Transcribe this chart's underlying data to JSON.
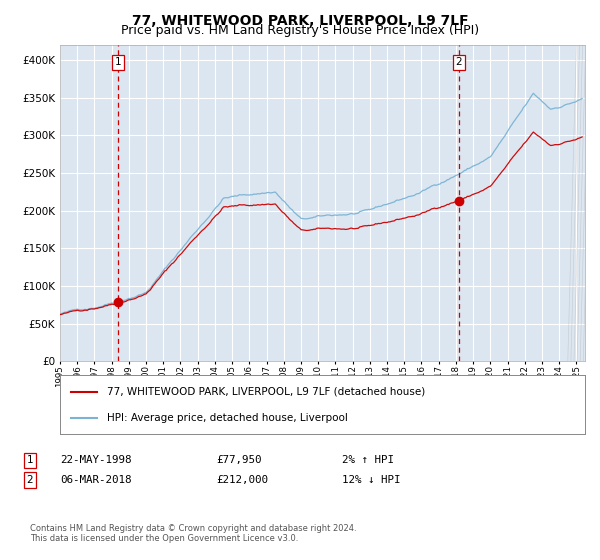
{
  "title": "77, WHITEWOOD PARK, LIVERPOOL, L9 7LF",
  "subtitle": "Price paid vs. HM Land Registry's House Price Index (HPI)",
  "hpi_label": "HPI: Average price, detached house, Liverpool",
  "property_label": "77, WHITEWOOD PARK, LIVERPOOL, L9 7LF (detached house)",
  "sale1_date": "22-MAY-1998",
  "sale1_price": 77950,
  "sale1_hpi_pct": "2% ↑ HPI",
  "sale1_year": 1998.39,
  "sale2_date": "06-MAR-2018",
  "sale2_price": 212000,
  "sale2_hpi_pct": "12% ↓ HPI",
  "sale2_year": 2018.18,
  "xmin": 1995,
  "xmax": 2025.5,
  "ymin": 0,
  "ymax": 420000,
  "yticks": [
    0,
    50000,
    100000,
    150000,
    200000,
    250000,
    300000,
    350000,
    400000
  ],
  "background_color": "#dce6f1",
  "fig_color": "#ffffff",
  "grid_color": "#ffffff",
  "hpi_line_color": "#7ab3d4",
  "property_line_color": "#cc0000",
  "sale_dot_color": "#cc0000",
  "vline_color": "#cc0000",
  "title_fontsize": 10,
  "subtitle_fontsize": 9,
  "footnote": "Contains HM Land Registry data © Crown copyright and database right 2024.\nThis data is licensed under the Open Government Licence v3.0."
}
